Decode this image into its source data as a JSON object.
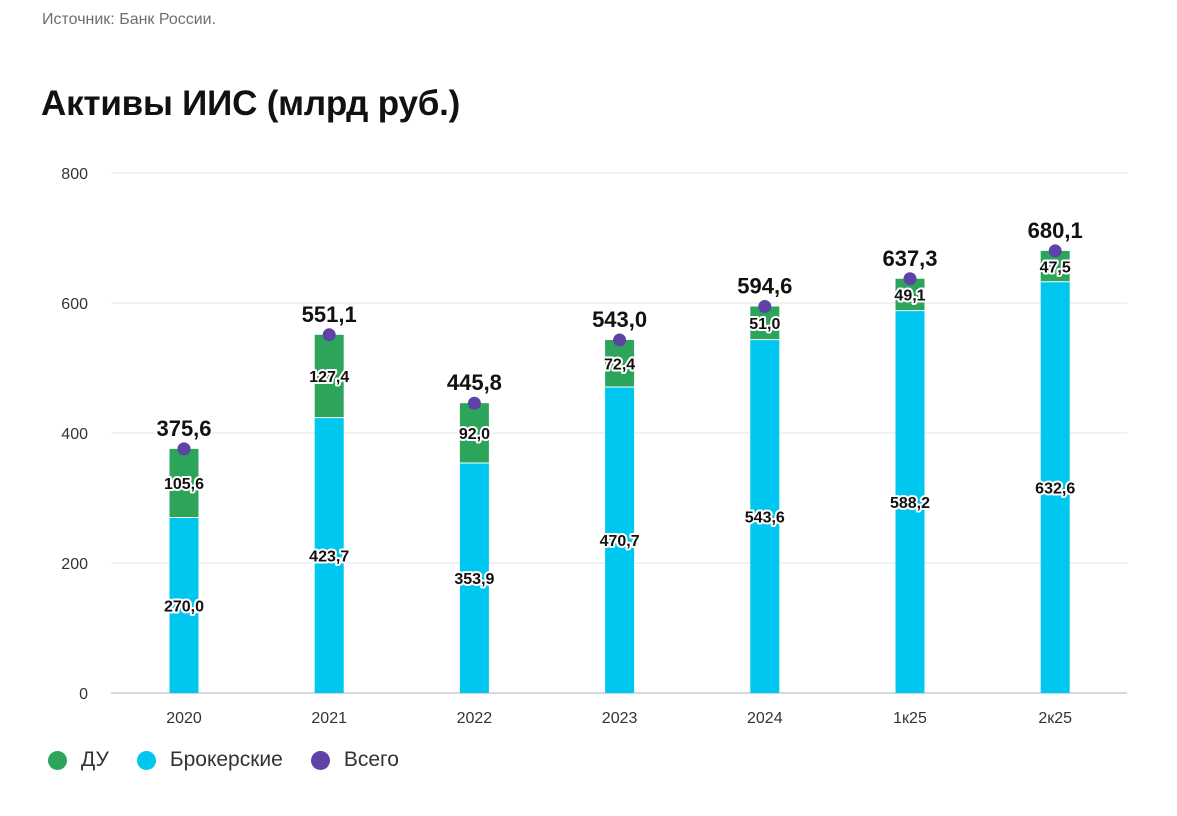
{
  "source": "Источник: Банк России.",
  "colors": {
    "du": "#2ca55a",
    "broker": "#00c7f0",
    "total": "#5e42a6",
    "grid": "#e3e6ea",
    "axis": "#c8ccd2"
  },
  "chart_data": {
    "type": "bar",
    "title": "Активы ИИС (млрд руб.)",
    "categories": [
      "2020",
      "2021",
      "2022",
      "2023",
      "2024",
      "1к25",
      "2к25"
    ],
    "series": [
      {
        "name": "Брокерские",
        "values": [
          270.0,
          423.7,
          353.9,
          470.7,
          543.6,
          588.2,
          632.6
        ],
        "labels": [
          "270,0",
          "423,7",
          "353,9",
          "470,7",
          "543,6",
          "588,2",
          "632,6"
        ]
      },
      {
        "name": "ДУ",
        "values": [
          105.6,
          127.4,
          92.0,
          72.4,
          51.0,
          49.1,
          47.5
        ],
        "labels": [
          "105,6",
          "127,4",
          "92,0",
          "72,4",
          "51,0",
          "49,1",
          "47,5"
        ]
      },
      {
        "name": "Всего",
        "values": [
          375.6,
          551.1,
          445.8,
          543.0,
          594.6,
          637.3,
          680.1
        ],
        "labels": [
          "375,6",
          "551,1",
          "445,8",
          "543,0",
          "594,6",
          "637,3",
          "680,1"
        ]
      }
    ],
    "ylim": [
      0,
      800
    ],
    "yticks": [
      0,
      200,
      400,
      600,
      800
    ],
    "grid": true,
    "legend_position": "bottom-left"
  },
  "legend": [
    {
      "label": "ДУ",
      "color": "#2ca55a"
    },
    {
      "label": "Брокерские",
      "color": "#00c7f0"
    },
    {
      "label": "Всего",
      "color": "#5e42a6"
    }
  ]
}
